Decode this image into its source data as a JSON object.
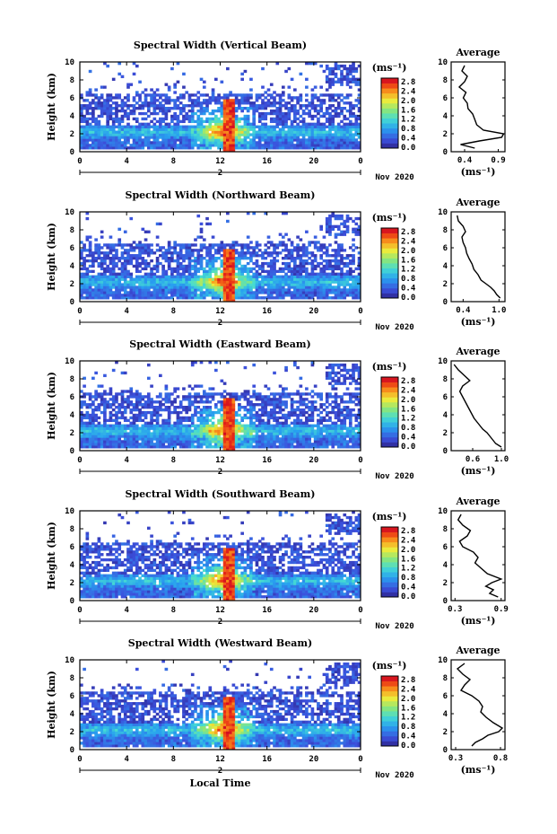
{
  "figure": {
    "xlabel": "Local Time",
    "date_label": "Nov 2020",
    "day_marker": "2",
    "ylabel": "Height (km)",
    "colorbar_unit": "(ms⁻¹)",
    "colorbar_ticks": [
      "2.8",
      "2.4",
      "2.0",
      "1.6",
      "1.2",
      "0.8",
      "0.4",
      "0.0"
    ],
    "avg_title": "Average",
    "avg_xlabel": "(ms⁻¹)"
  },
  "chart_data": [
    {
      "type": "heatmap",
      "title": "Spectral Width (Vertical Beam)",
      "xlabel": "",
      "ylabel": "Height (km)",
      "x_ticks": [
        "0",
        "4",
        "8",
        "12",
        "16",
        "20",
        "0"
      ],
      "xlim": [
        0,
        24
      ],
      "y_ticks": [
        "0",
        "2",
        "4",
        "6",
        "8",
        "10"
      ],
      "ylim": [
        0,
        10
      ],
      "colorbar_range": [
        0.0,
        2.8
      ],
      "avg_profile": {
        "x_ticks": [
          "0.4",
          "0.9"
        ],
        "xlim": [
          0.2,
          1.0
        ],
        "height": [
          0.4,
          0.8,
          1.2,
          1.6,
          2.0,
          2.4,
          3.0,
          3.6,
          4.2,
          4.8,
          5.4,
          6.0,
          6.6,
          7.2,
          7.8,
          8.4,
          9.0,
          9.6
        ],
        "value": [
          0.55,
          0.34,
          0.62,
          0.95,
          0.98,
          0.68,
          0.58,
          0.55,
          0.52,
          0.45,
          0.44,
          0.38,
          0.42,
          0.32,
          0.4,
          0.44,
          0.36,
          0.4
        ]
      }
    },
    {
      "type": "heatmap",
      "title": "Spectral Width (Northward Beam)",
      "xlabel": "",
      "ylabel": "Height (km)",
      "x_ticks": [
        "0",
        "4",
        "8",
        "12",
        "16",
        "20",
        "0"
      ],
      "xlim": [
        0,
        24
      ],
      "y_ticks": [
        "0",
        "2",
        "4",
        "6",
        "8",
        "10"
      ],
      "ylim": [
        0,
        10
      ],
      "colorbar_range": [
        0.0,
        2.8
      ],
      "avg_profile": {
        "x_ticks": [
          "0.4",
          "1.0"
        ],
        "xlim": [
          0.2,
          1.1
        ],
        "height": [
          0.4,
          0.8,
          1.2,
          1.6,
          2.0,
          2.4,
          3.0,
          3.6,
          4.2,
          4.8,
          5.4,
          6.0,
          6.6,
          7.2,
          7.8,
          8.4,
          9.0,
          9.6
        ],
        "value": [
          1.02,
          0.96,
          0.92,
          0.86,
          0.78,
          0.7,
          0.65,
          0.58,
          0.55,
          0.5,
          0.46,
          0.44,
          0.4,
          0.38,
          0.44,
          0.4,
          0.32,
          0.3
        ]
      }
    },
    {
      "type": "heatmap",
      "title": "Spectral Width (Eastward Beam)",
      "xlabel": "",
      "ylabel": "Height (km)",
      "x_ticks": [
        "0",
        "4",
        "8",
        "12",
        "16",
        "20",
        "0"
      ],
      "xlim": [
        0,
        24
      ],
      "y_ticks": [
        "0",
        "2",
        "4",
        "6",
        "8",
        "10"
      ],
      "ylim": [
        0,
        10
      ],
      "colorbar_range": [
        0.0,
        2.8
      ],
      "avg_profile": {
        "x_ticks": [
          "0.6",
          "1.0"
        ],
        "xlim": [
          0.3,
          1.05
        ],
        "height": [
          0.4,
          0.8,
          1.2,
          1.6,
          2.0,
          2.4,
          3.0,
          3.6,
          4.2,
          4.8,
          5.4,
          6.0,
          6.6,
          7.2,
          7.8,
          8.4,
          9.0,
          9.6
        ],
        "value": [
          1.0,
          0.92,
          0.88,
          0.84,
          0.8,
          0.74,
          0.68,
          0.62,
          0.58,
          0.54,
          0.5,
          0.46,
          0.42,
          0.46,
          0.56,
          0.48,
          0.4,
          0.34
        ]
      }
    },
    {
      "type": "heatmap",
      "title": "Spectral Width (Southward Beam)",
      "xlabel": "",
      "ylabel": "Height (km)",
      "x_ticks": [
        "0",
        "4",
        "8",
        "12",
        "16",
        "20",
        "0"
      ],
      "xlim": [
        0,
        24
      ],
      "y_ticks": [
        "0",
        "2",
        "4",
        "6",
        "8",
        "10"
      ],
      "ylim": [
        0,
        10
      ],
      "colorbar_range": [
        0.0,
        2.8
      ],
      "avg_profile": {
        "x_ticks": [
          "0.3",
          "0.9"
        ],
        "xlim": [
          0.25,
          0.95
        ],
        "height": [
          0.4,
          0.8,
          1.2,
          1.6,
          2.0,
          2.4,
          3.0,
          3.6,
          4.2,
          4.8,
          5.4,
          6.0,
          6.6,
          7.2,
          7.8,
          8.4,
          9.0,
          9.6
        ],
        "value": [
          0.86,
          0.75,
          0.8,
          0.7,
          0.78,
          0.9,
          0.72,
          0.64,
          0.56,
          0.6,
          0.54,
          0.4,
          0.36,
          0.46,
          0.5,
          0.4,
          0.34,
          0.38
        ]
      }
    },
    {
      "type": "heatmap",
      "title": "Spectral Width (Westward Beam)",
      "xlabel": "Local Time",
      "ylabel": "Height (km)",
      "x_ticks": [
        "0",
        "4",
        "8",
        "12",
        "16",
        "20",
        "0"
      ],
      "xlim": [
        0,
        24
      ],
      "y_ticks": [
        "0",
        "2",
        "4",
        "6",
        "8",
        "10"
      ],
      "ylim": [
        0,
        10
      ],
      "colorbar_range": [
        0.0,
        2.8
      ],
      "avg_profile": {
        "x_ticks": [
          "0.3",
          "0.8"
        ],
        "xlim": [
          0.25,
          0.85
        ],
        "height": [
          0.4,
          0.8,
          1.2,
          1.6,
          2.0,
          2.4,
          3.0,
          3.6,
          4.2,
          4.8,
          5.4,
          6.0,
          6.6,
          7.2,
          7.8,
          8.4,
          9.0,
          9.6
        ],
        "value": [
          0.48,
          0.52,
          0.6,
          0.66,
          0.78,
          0.82,
          0.72,
          0.64,
          0.58,
          0.6,
          0.56,
          0.48,
          0.36,
          0.4,
          0.46,
          0.38,
          0.32,
          0.4
        ]
      }
    }
  ]
}
